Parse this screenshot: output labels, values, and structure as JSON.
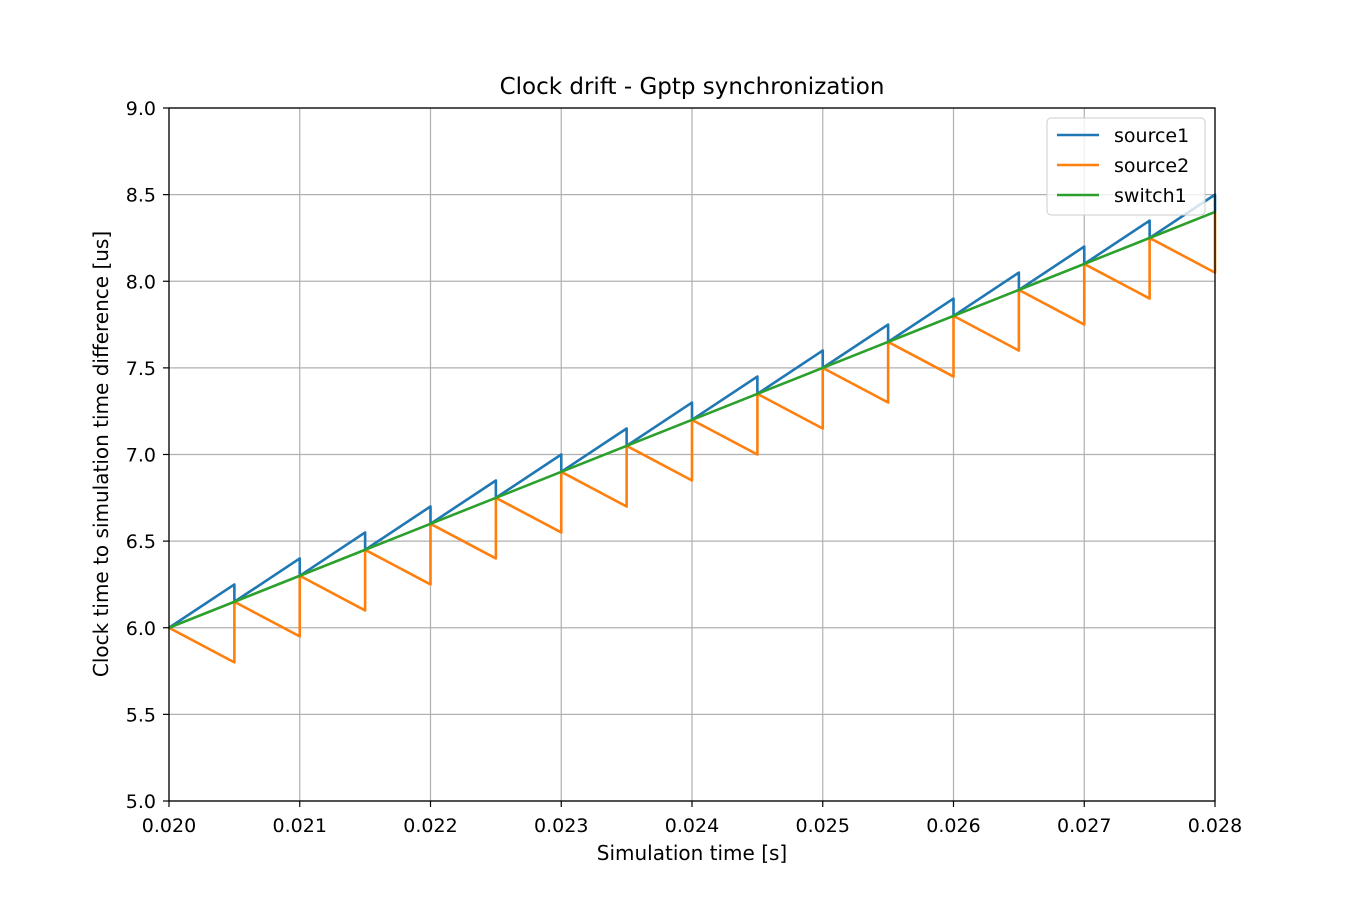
{
  "chart_data": {
    "type": "line",
    "title": "Clock drift - Gptp synchronization",
    "xlabel": "Simulation time [s]",
    "ylabel": "Clock time to simulation time difference [us]",
    "xlim": [
      0.02,
      0.028
    ],
    "ylim": [
      5.0,
      9.0
    ],
    "xticks": [
      "0.020",
      "0.021",
      "0.022",
      "0.023",
      "0.024",
      "0.025",
      "0.026",
      "0.027",
      "0.028"
    ],
    "yticks": [
      "5.0",
      "5.5",
      "6.0",
      "6.5",
      "7.0",
      "7.5",
      "8.0",
      "8.5",
      "9.0"
    ],
    "grid": true,
    "legend_position": "top-right",
    "series": [
      {
        "name": "source1",
        "color": "#1f77b4",
        "points": [
          [
            0.02,
            6.0
          ],
          [
            0.0205,
            6.25
          ],
          [
            0.0205,
            6.15
          ],
          [
            0.021,
            6.4
          ],
          [
            0.021,
            6.3
          ],
          [
            0.0215,
            6.55
          ],
          [
            0.0215,
            6.45
          ],
          [
            0.022,
            6.7
          ],
          [
            0.022,
            6.6
          ],
          [
            0.0225,
            6.85
          ],
          [
            0.0225,
            6.75
          ],
          [
            0.023,
            7.0
          ],
          [
            0.023,
            6.9
          ],
          [
            0.0235,
            7.15
          ],
          [
            0.0235,
            7.05
          ],
          [
            0.024,
            7.3
          ],
          [
            0.024,
            7.2
          ],
          [
            0.0245,
            7.45
          ],
          [
            0.0245,
            7.35
          ],
          [
            0.025,
            7.6
          ],
          [
            0.025,
            7.5
          ],
          [
            0.0255,
            7.75
          ],
          [
            0.0255,
            7.65
          ],
          [
            0.026,
            7.9
          ],
          [
            0.026,
            7.8
          ],
          [
            0.0265,
            8.05
          ],
          [
            0.0265,
            7.95
          ],
          [
            0.027,
            8.2
          ],
          [
            0.027,
            8.1
          ],
          [
            0.0275,
            8.35
          ],
          [
            0.0275,
            8.25
          ],
          [
            0.028,
            8.5
          ],
          [
            0.028,
            8.4
          ]
        ]
      },
      {
        "name": "source2",
        "color": "#ff7f0e",
        "points": [
          [
            0.02,
            6.0
          ],
          [
            0.0205,
            5.8
          ],
          [
            0.0205,
            6.15
          ],
          [
            0.021,
            5.95
          ],
          [
            0.021,
            6.3
          ],
          [
            0.0215,
            6.1
          ],
          [
            0.0215,
            6.45
          ],
          [
            0.022,
            6.25
          ],
          [
            0.022,
            6.6
          ],
          [
            0.0225,
            6.4
          ],
          [
            0.0225,
            6.75
          ],
          [
            0.023,
            6.55
          ],
          [
            0.023,
            6.9
          ],
          [
            0.0235,
            6.7
          ],
          [
            0.0235,
            7.05
          ],
          [
            0.024,
            6.85
          ],
          [
            0.024,
            7.2
          ],
          [
            0.0245,
            7.0
          ],
          [
            0.0245,
            7.35
          ],
          [
            0.025,
            7.15
          ],
          [
            0.025,
            7.5
          ],
          [
            0.0255,
            7.3
          ],
          [
            0.0255,
            7.65
          ],
          [
            0.026,
            7.45
          ],
          [
            0.026,
            7.8
          ],
          [
            0.0265,
            7.6
          ],
          [
            0.0265,
            7.95
          ],
          [
            0.027,
            7.75
          ],
          [
            0.027,
            8.1
          ],
          [
            0.0275,
            7.9
          ],
          [
            0.0275,
            8.25
          ],
          [
            0.028,
            8.05
          ],
          [
            0.028,
            8.4
          ]
        ]
      },
      {
        "name": "switch1",
        "color": "#2ca02c",
        "points": [
          [
            0.02,
            6.0
          ],
          [
            0.028,
            8.4
          ]
        ]
      }
    ]
  }
}
